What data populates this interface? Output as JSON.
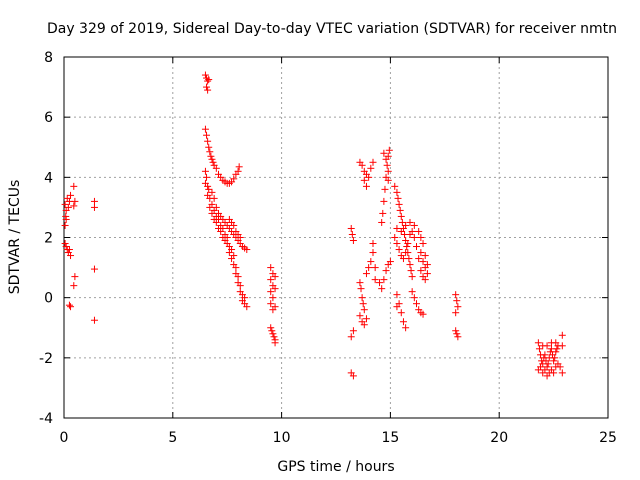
{
  "chart_data": {
    "type": "scatter",
    "title": "Day 329 of 2019, Sidereal Day-to-day VTEC variation (SDTVAR) for receiver nmtn",
    "xlabel": "GPS time / hours",
    "ylabel": "SDTVAR / TECUs",
    "xlim": [
      0,
      25
    ],
    "ylim": [
      -4,
      8
    ],
    "xticks": [
      "0",
      "5",
      "10",
      "15",
      "20",
      "25"
    ],
    "yticks": [
      "-4",
      "-2",
      "0",
      "2",
      "4",
      "6",
      "8"
    ],
    "grid": true,
    "marker": "+",
    "series": [
      {
        "name": "SDTVAR",
        "color": "#ff0000",
        "points": [
          [
            0.05,
            3.1
          ],
          [
            0.1,
            2.9
          ],
          [
            0.1,
            2.6
          ],
          [
            0.15,
            3.3
          ],
          [
            0.2,
            3.0
          ],
          [
            0.25,
            3.2
          ],
          [
            0.3,
            3.4
          ],
          [
            0.05,
            2.4
          ],
          [
            0.08,
            2.7
          ],
          [
            0.05,
            1.8
          ],
          [
            0.1,
            1.7
          ],
          [
            0.15,
            1.6
          ],
          [
            0.2,
            1.5
          ],
          [
            0.25,
            1.6
          ],
          [
            0.3,
            1.4
          ],
          [
            0.25,
            -0.25
          ],
          [
            0.3,
            -0.3
          ],
          [
            0.45,
            3.7
          ],
          [
            0.5,
            3.2
          ],
          [
            0.45,
            3.05
          ],
          [
            0.5,
            0.7
          ],
          [
            0.45,
            0.4
          ],
          [
            1.4,
            3.2
          ],
          [
            1.4,
            3.0
          ],
          [
            1.4,
            0.95
          ],
          [
            1.4,
            -0.75
          ],
          [
            6.5,
            7.4
          ],
          [
            6.55,
            7.3
          ],
          [
            6.6,
            7.2
          ],
          [
            6.55,
            7.0
          ],
          [
            6.6,
            6.9
          ],
          [
            6.65,
            7.25
          ],
          [
            6.5,
            5.6
          ],
          [
            6.55,
            5.4
          ],
          [
            6.6,
            5.2
          ],
          [
            6.65,
            5.0
          ],
          [
            6.7,
            4.85
          ],
          [
            6.75,
            4.7
          ],
          [
            6.8,
            4.6
          ],
          [
            6.85,
            4.5
          ],
          [
            6.9,
            4.4
          ],
          [
            7.0,
            4.3
          ],
          [
            7.1,
            4.1
          ],
          [
            7.2,
            4.0
          ],
          [
            7.3,
            3.9
          ],
          [
            7.4,
            3.85
          ],
          [
            7.5,
            3.8
          ],
          [
            7.6,
            3.8
          ],
          [
            7.7,
            3.85
          ],
          [
            7.8,
            3.95
          ],
          [
            7.9,
            4.1
          ],
          [
            8.0,
            4.2
          ],
          [
            8.05,
            4.35
          ],
          [
            6.5,
            4.2
          ],
          [
            6.5,
            3.8
          ],
          [
            6.55,
            4.0
          ],
          [
            6.6,
            3.7
          ],
          [
            6.6,
            3.4
          ],
          [
            6.65,
            3.6
          ],
          [
            6.7,
            3.3
          ],
          [
            6.7,
            3.0
          ],
          [
            6.8,
            3.1
          ],
          [
            6.8,
            2.8
          ],
          [
            6.9,
            2.9
          ],
          [
            6.9,
            2.6
          ],
          [
            7.0,
            2.7
          ],
          [
            7.0,
            2.5
          ],
          [
            7.1,
            2.6
          ],
          [
            7.1,
            2.3
          ],
          [
            7.2,
            2.4
          ],
          [
            7.2,
            2.2
          ],
          [
            7.3,
            2.3
          ],
          [
            7.3,
            2.0
          ],
          [
            7.4,
            2.1
          ],
          [
            7.4,
            1.9
          ],
          [
            7.5,
            1.8
          ],
          [
            7.5,
            2.0
          ],
          [
            7.6,
            1.7
          ],
          [
            7.6,
            1.5
          ],
          [
            7.7,
            1.6
          ],
          [
            7.7,
            1.3
          ],
          [
            7.8,
            1.4
          ],
          [
            7.8,
            1.1
          ],
          [
            7.9,
            1.0
          ],
          [
            7.9,
            0.8
          ],
          [
            8.0,
            0.7
          ],
          [
            8.0,
            0.5
          ],
          [
            8.1,
            0.4
          ],
          [
            8.1,
            0.2
          ],
          [
            8.2,
            0.1
          ],
          [
            8.2,
            -0.1
          ],
          [
            8.3,
            0.0
          ],
          [
            8.3,
            -0.2
          ],
          [
            8.4,
            -0.3
          ],
          [
            6.8,
            3.5
          ],
          [
            6.9,
            3.3
          ],
          [
            7.0,
            3.0
          ],
          [
            7.1,
            2.8
          ],
          [
            7.2,
            2.7
          ],
          [
            7.3,
            2.6
          ],
          [
            7.4,
            2.5
          ],
          [
            7.5,
            2.4
          ],
          [
            7.6,
            2.3
          ],
          [
            7.7,
            2.2
          ],
          [
            7.8,
            2.1
          ],
          [
            7.9,
            2.0
          ],
          [
            8.0,
            1.9
          ],
          [
            8.1,
            1.8
          ],
          [
            8.2,
            1.7
          ],
          [
            8.3,
            1.65
          ],
          [
            8.4,
            1.6
          ],
          [
            7.6,
            2.6
          ],
          [
            7.7,
            2.5
          ],
          [
            7.8,
            2.4
          ],
          [
            7.9,
            2.2
          ],
          [
            8.0,
            2.1
          ],
          [
            8.1,
            2.0
          ],
          [
            9.5,
            1.0
          ],
          [
            9.6,
            0.8
          ],
          [
            9.5,
            0.6
          ],
          [
            9.6,
            0.4
          ],
          [
            9.5,
            0.2
          ],
          [
            9.6,
            0.0
          ],
          [
            9.5,
            -0.2
          ],
          [
            9.6,
            -0.4
          ],
          [
            9.7,
            -0.3
          ],
          [
            9.7,
            0.3
          ],
          [
            9.7,
            0.7
          ],
          [
            9.5,
            -1.0
          ],
          [
            9.55,
            -1.1
          ],
          [
            9.6,
            -1.2
          ],
          [
            9.65,
            -1.3
          ],
          [
            9.7,
            -1.4
          ],
          [
            9.7,
            -1.5
          ],
          [
            13.2,
            2.3
          ],
          [
            13.25,
            2.1
          ],
          [
            13.3,
            1.9
          ],
          [
            13.2,
            -1.3
          ],
          [
            13.3,
            -1.1
          ],
          [
            13.2,
            -2.5
          ],
          [
            13.3,
            -2.6
          ],
          [
            13.6,
            4.5
          ],
          [
            13.7,
            4.4
          ],
          [
            13.8,
            4.2
          ],
          [
            13.9,
            4.1
          ],
          [
            14.0,
            4.0
          ],
          [
            14.1,
            4.3
          ],
          [
            14.2,
            4.5
          ],
          [
            13.8,
            3.9
          ],
          [
            13.9,
            3.7
          ],
          [
            13.6,
            0.5
          ],
          [
            13.65,
            0.3
          ],
          [
            13.7,
            0.0
          ],
          [
            13.75,
            -0.2
          ],
          [
            13.8,
            -0.4
          ],
          [
            13.6,
            -0.6
          ],
          [
            13.7,
            -0.8
          ],
          [
            13.8,
            -0.9
          ],
          [
            13.9,
            -0.7
          ],
          [
            13.9,
            0.8
          ],
          [
            14.0,
            1.0
          ],
          [
            14.1,
            1.2
          ],
          [
            14.2,
            1.5
          ],
          [
            14.2,
            1.8
          ],
          [
            14.3,
            1.0
          ],
          [
            14.3,
            0.6
          ],
          [
            14.5,
            0.5
          ],
          [
            14.6,
            0.3
          ],
          [
            14.7,
            0.6
          ],
          [
            14.8,
            0.9
          ],
          [
            14.9,
            1.1
          ],
          [
            15.0,
            1.2
          ],
          [
            14.6,
            2.5
          ],
          [
            14.65,
            2.8
          ],
          [
            14.7,
            3.2
          ],
          [
            14.75,
            3.6
          ],
          [
            14.8,
            4.0
          ],
          [
            14.85,
            4.4
          ],
          [
            14.9,
            4.7
          ],
          [
            14.95,
            4.9
          ],
          [
            14.7,
            4.8
          ],
          [
            14.8,
            4.6
          ],
          [
            14.9,
            4.2
          ],
          [
            14.9,
            3.9
          ],
          [
            15.2,
            3.7
          ],
          [
            15.3,
            3.5
          ],
          [
            15.35,
            3.3
          ],
          [
            15.4,
            3.1
          ],
          [
            15.45,
            2.9
          ],
          [
            15.5,
            2.7
          ],
          [
            15.55,
            2.5
          ],
          [
            15.6,
            2.3
          ],
          [
            15.65,
            2.1
          ],
          [
            15.7,
            1.9
          ],
          [
            15.75,
            1.7
          ],
          [
            15.8,
            1.5
          ],
          [
            15.85,
            1.3
          ],
          [
            15.9,
            1.1
          ],
          [
            15.95,
            0.9
          ],
          [
            16.0,
            0.7
          ],
          [
            15.2,
            2.0
          ],
          [
            15.3,
            1.8
          ],
          [
            15.4,
            1.6
          ],
          [
            15.5,
            1.4
          ],
          [
            15.6,
            1.3
          ],
          [
            15.7,
            1.5
          ],
          [
            15.8,
            1.8
          ],
          [
            15.9,
            2.1
          ],
          [
            16.0,
            2.2
          ],
          [
            16.1,
            2.0
          ],
          [
            16.2,
            1.7
          ],
          [
            16.3,
            1.3
          ],
          [
            15.3,
            2.3
          ],
          [
            15.5,
            2.2
          ],
          [
            15.7,
            2.4
          ],
          [
            15.9,
            2.5
          ],
          [
            16.1,
            2.4
          ],
          [
            15.3,
            0.1
          ],
          [
            15.4,
            -0.2
          ],
          [
            15.5,
            -0.5
          ],
          [
            15.6,
            -0.8
          ],
          [
            15.7,
            -1.0
          ],
          [
            15.3,
            -0.3
          ],
          [
            16.0,
            0.2
          ],
          [
            16.1,
            0.0
          ],
          [
            16.2,
            -0.2
          ],
          [
            16.3,
            -0.4
          ],
          [
            16.4,
            -0.5
          ],
          [
            16.5,
            -0.55
          ],
          [
            16.3,
            2.2
          ],
          [
            16.4,
            2.0
          ],
          [
            16.5,
            1.8
          ],
          [
            16.4,
            1.5
          ],
          [
            16.5,
            1.2
          ],
          [
            16.6,
            1.0
          ],
          [
            16.7,
            0.8
          ],
          [
            16.6,
            1.4
          ],
          [
            16.7,
            1.1
          ],
          [
            16.4,
            0.9
          ],
          [
            16.5,
            0.7
          ],
          [
            16.6,
            0.6
          ],
          [
            18.0,
            0.1
          ],
          [
            18.05,
            -0.1
          ],
          [
            18.1,
            -0.3
          ],
          [
            18.0,
            -0.5
          ],
          [
            18.0,
            -1.1
          ],
          [
            18.05,
            -1.2
          ],
          [
            18.1,
            -1.3
          ],
          [
            21.8,
            -1.5
          ],
          [
            21.85,
            -1.7
          ],
          [
            21.9,
            -1.9
          ],
          [
            21.95,
            -2.1
          ],
          [
            22.0,
            -2.2
          ],
          [
            22.05,
            -2.0
          ],
          [
            22.1,
            -1.9
          ],
          [
            22.15,
            -2.1
          ],
          [
            22.2,
            -2.3
          ],
          [
            22.25,
            -2.2
          ],
          [
            22.3,
            -2.0
          ],
          [
            22.35,
            -1.8
          ],
          [
            22.4,
            -1.7
          ],
          [
            22.45,
            -1.9
          ],
          [
            22.5,
            -2.1
          ],
          [
            22.55,
            -2.0
          ],
          [
            22.6,
            -1.8
          ],
          [
            22.65,
            -1.7
          ],
          [
            22.7,
            -1.6
          ],
          [
            21.8,
            -2.4
          ],
          [
            21.9,
            -2.3
          ],
          [
            22.0,
            -2.5
          ],
          [
            22.1,
            -2.4
          ],
          [
            22.2,
            -2.6
          ],
          [
            22.3,
            -2.5
          ],
          [
            22.4,
            -2.4
          ],
          [
            22.5,
            -2.5
          ],
          [
            22.6,
            -2.3
          ],
          [
            22.7,
            -2.2
          ],
          [
            22.8,
            -2.3
          ],
          [
            22.9,
            -2.5
          ],
          [
            22.0,
            -1.6
          ],
          [
            22.2,
            -1.6
          ],
          [
            22.4,
            -1.5
          ],
          [
            22.6,
            -1.5
          ],
          [
            22.9,
            -1.25
          ],
          [
            22.9,
            -1.6
          ]
        ]
      }
    ]
  }
}
